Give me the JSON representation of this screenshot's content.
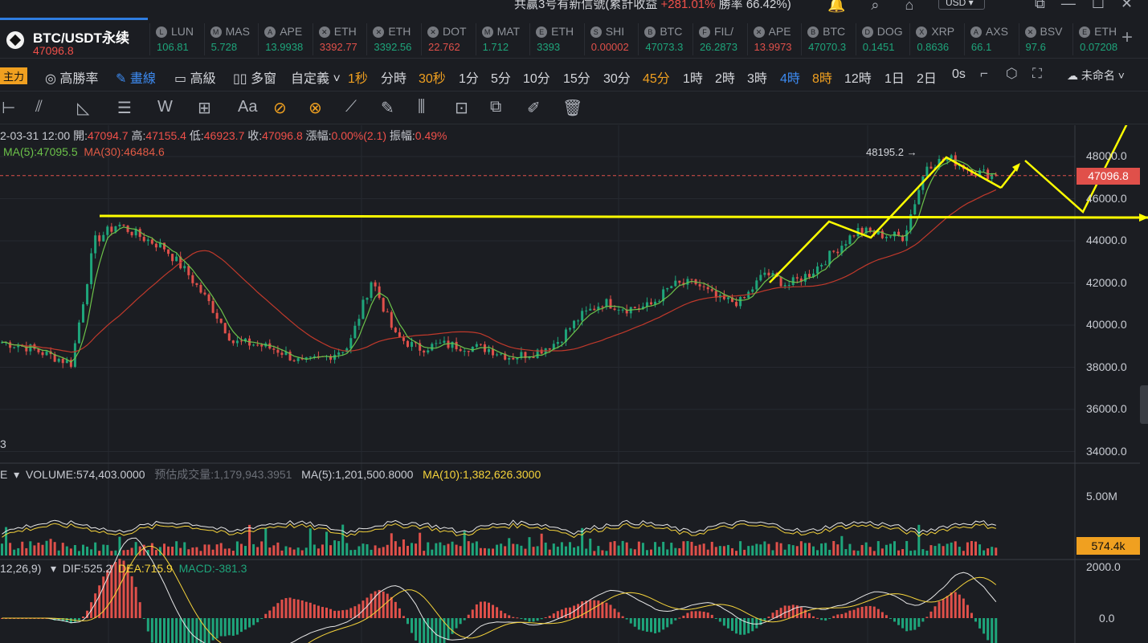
{
  "topbar": {
    "info_prefix": "共赢3号有新信號(累計收益 ",
    "info_gain": "+281.01%",
    "info_suffix": " 勝率 66.42%)",
    "currency": "USD ▾"
  },
  "symbol": {
    "name": "BTC/USDT永续",
    "price": "47096.8"
  },
  "tickers": [
    {
      "sym": "LUN",
      "price": "106.81",
      "dir": "up",
      "icon": "L"
    },
    {
      "sym": "MAS",
      "price": "5.728",
      "dir": "up",
      "icon": "M"
    },
    {
      "sym": "APE",
      "price": "13.9938",
      "dir": "up",
      "icon": "A"
    },
    {
      "sym": "ETH",
      "price": "3392.77",
      "dir": "dn",
      "icon": "✕"
    },
    {
      "sym": "ETH",
      "price": "3392.56",
      "dir": "up",
      "icon": "✕"
    },
    {
      "sym": "DOT",
      "price": "22.762",
      "dir": "dn",
      "icon": "✕"
    },
    {
      "sym": "MAT",
      "price": "1.712",
      "dir": "up",
      "icon": "M"
    },
    {
      "sym": "ETH",
      "price": "3393",
      "dir": "up",
      "icon": "E"
    },
    {
      "sym": "SHI",
      "price": "0.00002",
      "dir": "dn",
      "icon": "S"
    },
    {
      "sym": "BTC",
      "price": "47073.3",
      "dir": "up",
      "icon": "B"
    },
    {
      "sym": "FIL/",
      "price": "26.2873",
      "dir": "up",
      "icon": "F"
    },
    {
      "sym": "APE",
      "price": "13.9973",
      "dir": "dn",
      "icon": "✕"
    },
    {
      "sym": "BTC",
      "price": "47070.3",
      "dir": "up",
      "icon": "B"
    },
    {
      "sym": "DOG",
      "price": "0.1451",
      "dir": "up",
      "icon": "D"
    },
    {
      "sym": "XRP",
      "price": "0.8636",
      "dir": "up",
      "icon": "X"
    },
    {
      "sym": "AXS",
      "price": "66.1",
      "dir": "up",
      "icon": "A"
    },
    {
      "sym": "BSV",
      "price": "97.6",
      "dir": "up",
      "icon": "✕"
    },
    {
      "sym": "ETH",
      "price": "0.07208",
      "dir": "up",
      "icon": "E"
    }
  ],
  "tfbar": {
    "main": "主力",
    "winrate": "高勝率",
    "draw": "畫線",
    "advanced": "高級",
    "multi": "多窗",
    "custom": "自定義",
    "timeframes": [
      {
        "label": "1秒",
        "style": "o"
      },
      {
        "label": "分時",
        "style": "w"
      },
      {
        "label": "30秒",
        "style": "o"
      },
      {
        "label": "1分",
        "style": "w"
      },
      {
        "label": "5分",
        "style": "w"
      },
      {
        "label": "10分",
        "style": "w"
      },
      {
        "label": "15分",
        "style": "w"
      },
      {
        "label": "30分",
        "style": "w"
      },
      {
        "label": "45分",
        "style": "o"
      },
      {
        "label": "1時",
        "style": "w"
      },
      {
        "label": "2時",
        "style": "w"
      },
      {
        "label": "3時",
        "style": "w"
      },
      {
        "label": "4時",
        "style": "b"
      },
      {
        "label": "8時",
        "style": "o"
      },
      {
        "label": "12時",
        "style": "w"
      },
      {
        "label": "1日",
        "style": "w"
      },
      {
        "label": "2日",
        "style": "w"
      },
      {
        "label": "0s",
        "style": "w"
      }
    ],
    "unnamed": "未命名"
  },
  "ohlc": {
    "time": "2-03-31 12:00",
    "open_label": "開:",
    "open": "47094.7",
    "high_label": "高:",
    "high": "47155.4",
    "low_label": "低:",
    "low": "46923.7",
    "close_label": "收:",
    "close": "47096.8",
    "chg_label": "漲幅:",
    "chg": "0.00%(2.1)",
    "amp_label": "振幅:",
    "amp": "0.49%"
  },
  "ma": {
    "ma5": "MA(5):47095.5",
    "ma30": "MA(30):46484.6"
  },
  "price_axis": [
    "48000.0",
    "46000.0",
    "44000.0",
    "42000.0",
    "40000.0",
    "38000.0",
    "36000.0",
    "34000.0"
  ],
  "last_price": "47096.8",
  "high_marker": "48195.2 →",
  "left_edge_label": "3",
  "volume": {
    "prefix": "E",
    "vol": "VOLUME:574,403.0000",
    "est_label": "预估成交量:",
    "est": "1,179,943.3951",
    "ma5": "MA(5):1,201,500.8000",
    "ma10": "MA(10):1,382,626.3000",
    "axis_top": "5.00M",
    "current": "574.4k"
  },
  "macd": {
    "params": "12,26,9)",
    "dif": "DIF:525.2",
    "dea": "DEA:715.9",
    "macd": "MACD:-381.3",
    "axis_top": "2000.0",
    "axis_zero": "0.0"
  },
  "colors": {
    "up": "#1ea57b",
    "down": "#e0504a",
    "ma5": "#6cc24a",
    "ma30": "#c0392b",
    "annotation": "#ffff00",
    "accent": "#3d8bf2"
  },
  "chart_data": {
    "type": "candlestick",
    "description_note": "4h BTC/USDT perpetual candles, price range roughly 34000-48500",
    "y_range": [
      34000,
      48500
    ],
    "key_levels": {
      "resistance_line": 45100,
      "recent_high": 48195.2
    },
    "close_path_approx": [
      39200,
      39000,
      38600,
      38200,
      44000,
      44800,
      44200,
      43700,
      42500,
      41000,
      39200,
      39100,
      38800,
      38200,
      38500,
      39000,
      42200,
      39500,
      38900,
      39100,
      39000,
      38900,
      38500,
      38700,
      39200,
      40400,
      41100,
      40800,
      40900,
      41900,
      42000,
      41200,
      41100,
      42500,
      41900,
      42500,
      43500,
      44500,
      44300,
      44200,
      47600,
      47900,
      47300,
      47096.8
    ]
  }
}
